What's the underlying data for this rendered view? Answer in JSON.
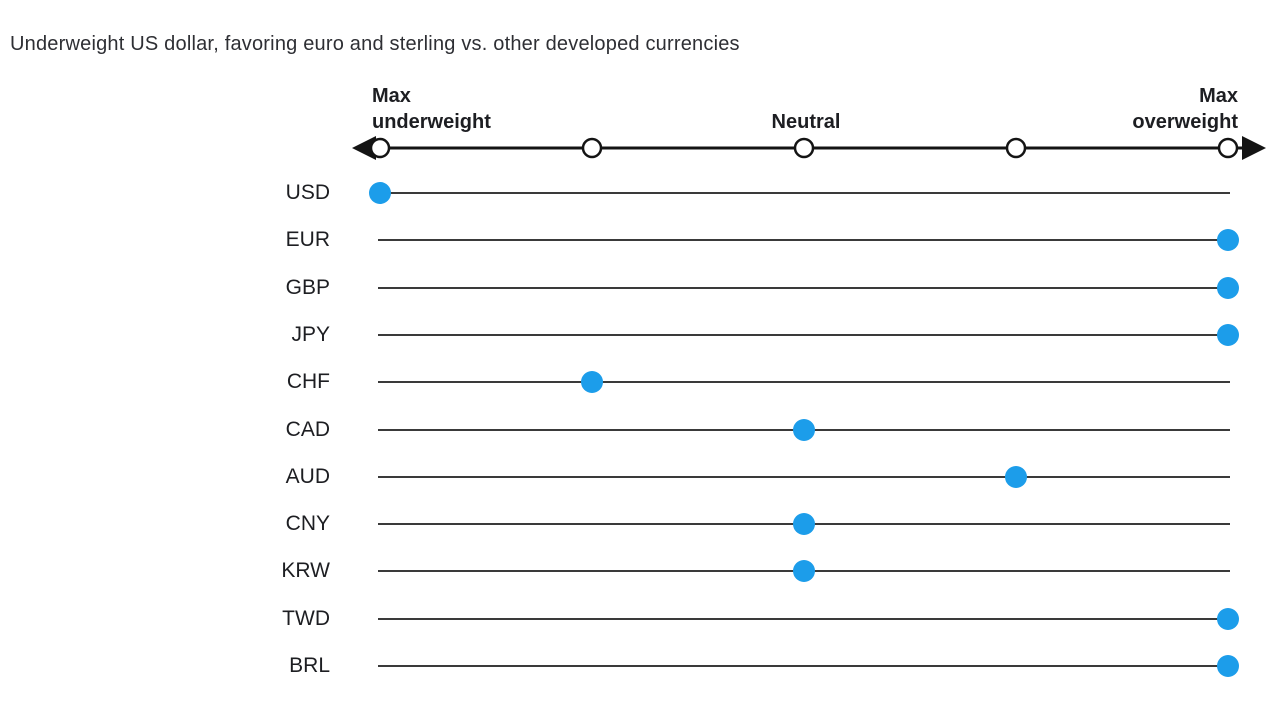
{
  "title": "Underweight US dollar, favoring euro and sterling vs. other developed currencies",
  "axis_labels": {
    "left": "Max\nunderweight",
    "center": "Neutral",
    "right": "Max\noverweight"
  },
  "colors": {
    "dot": "#1c9dea",
    "row_line": "#3a3a3a",
    "axis_line": "#141414",
    "text": "#1d1e22"
  },
  "chart_data": {
    "type": "scatter",
    "title": "Underweight US dollar, favoring euro and sterling vs. other developed currencies",
    "xlabel": "Positioning scale from Max underweight to Max overweight",
    "scale": {
      "min": -2,
      "max": 2,
      "ticks": [
        -2,
        -1,
        0,
        1,
        2
      ],
      "tick_labels": {
        "-2": "Max underweight",
        "0": "Neutral",
        "2": "Max overweight"
      }
    },
    "categories": [
      "USD",
      "EUR",
      "GBP",
      "JPY",
      "CHF",
      "CAD",
      "AUD",
      "CNY",
      "KRW",
      "TWD",
      "BRL"
    ],
    "values": [
      -2,
      2,
      2,
      2,
      -1,
      0,
      1,
      0,
      0,
      2,
      2
    ],
    "legend": [],
    "grid": false
  }
}
